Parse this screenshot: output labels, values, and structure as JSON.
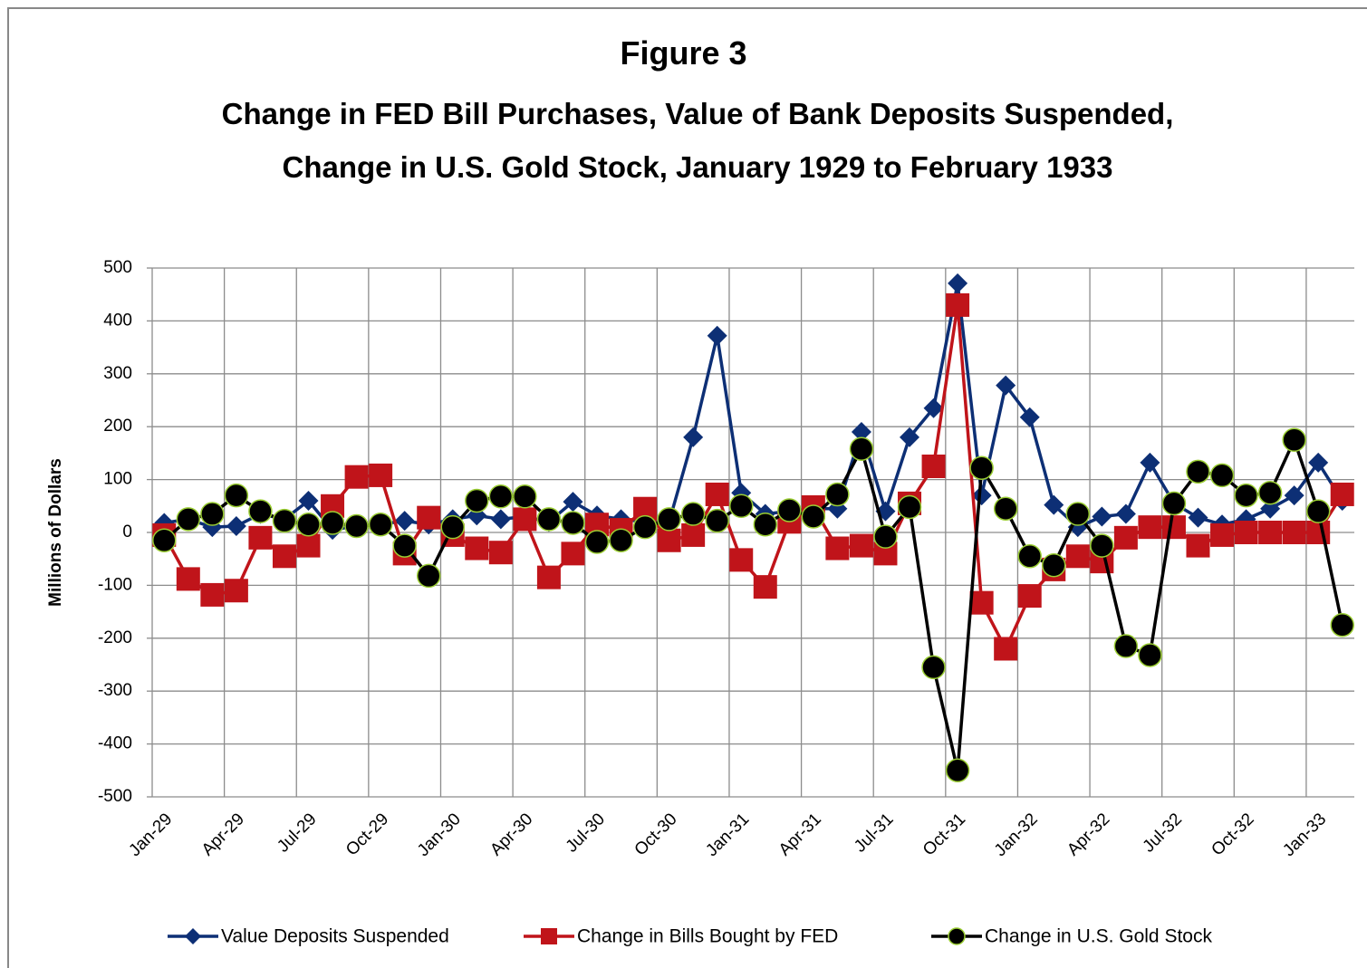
{
  "chart_data": {
    "type": "line",
    "title": "Figure 3",
    "subtitle": "Change in FED Bill Purchases, Value of Bank Deposits Suspended, Change in U.S. Gold Stock, January 1929 to February 1933",
    "y_label": "Millions of Dollars",
    "categories": [
      "Jan-29",
      null,
      null,
      "Apr-29",
      null,
      null,
      "Jul-29",
      null,
      null,
      "Oct-29",
      null,
      null,
      "Jan-30",
      null,
      null,
      "Apr-30",
      null,
      null,
      "Jul-30",
      null,
      null,
      "Oct-30",
      null,
      null,
      "Jan-31",
      null,
      null,
      "Apr-31",
      null,
      null,
      "Jul-31",
      null,
      null,
      "Oct-31",
      null,
      null,
      "Jan-32",
      null,
      null,
      "Apr-32",
      null,
      null,
      "Jul-32",
      null,
      null,
      "Oct-32",
      null,
      null,
      "Jan-33",
      null
    ],
    "ylim": [
      -500,
      500
    ],
    "yticks": [
      -500,
      -400,
      -300,
      -200,
      -100,
      0,
      100,
      200,
      300,
      400,
      500
    ],
    "grid": true,
    "legend": "bottom",
    "series": [
      {
        "name": "Value Deposits Suspended",
        "color": "#0d2f75",
        "marker": "diamond",
        "values": [
          18,
          25,
          10,
          12,
          35,
          25,
          60,
          5,
          12,
          15,
          22,
          15,
          25,
          32,
          25,
          30,
          20,
          58,
          32,
          25,
          20,
          20,
          180,
          372,
          75,
          35,
          40,
          45,
          45,
          190,
          40,
          180,
          235,
          471,
          70,
          278,
          218,
          52,
          10,
          30,
          35,
          132,
          55,
          28,
          15,
          25,
          45,
          70,
          132,
          60
        ]
      },
      {
        "name": "Change in Bills Bought by FED",
        "color": "#c0141a",
        "marker": "square",
        "values": [
          -5,
          -88,
          -118,
          -110,
          -10,
          -45,
          -25,
          50,
          105,
          108,
          -40,
          28,
          -5,
          -30,
          -38,
          25,
          -85,
          -40,
          15,
          5,
          45,
          -15,
          -5,
          72,
          -52,
          -103,
          20,
          48,
          -30,
          -25,
          -40,
          55,
          125,
          430,
          -133,
          -220,
          -120,
          -70,
          -45,
          -55,
          -10,
          10,
          10,
          -25,
          -5,
          0,
          0,
          0,
          0,
          72
        ]
      },
      {
        "name": "Change in U.S. Gold Stock",
        "color": "#000000",
        "marker": "circle",
        "values": [
          -15,
          25,
          35,
          70,
          40,
          22,
          15,
          18,
          12,
          15,
          -25,
          -82,
          10,
          60,
          68,
          68,
          25,
          18,
          -18,
          -15,
          10,
          25,
          35,
          22,
          50,
          15,
          42,
          30,
          72,
          158,
          -8,
          48,
          -255,
          -450,
          122,
          45,
          -45,
          -62,
          35,
          -25,
          -215,
          -232,
          55,
          115,
          108,
          70,
          75,
          175,
          40,
          -175
        ]
      }
    ]
  }
}
